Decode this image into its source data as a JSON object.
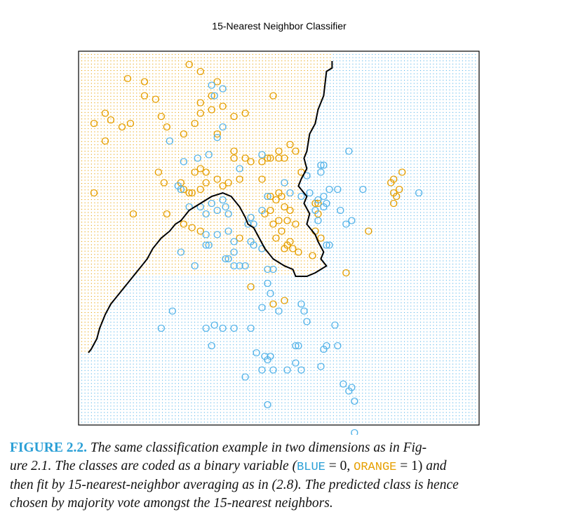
{
  "chart_data": {
    "type": "scatter",
    "title": "15-Nearest Neighbor Classifier",
    "xlabel": "",
    "ylabel": "",
    "xlim": [
      -2.6,
      4.2
    ],
    "ylim": [
      -2.2,
      2.9
    ],
    "marker": "O",
    "colors": {
      "ORANGE": "#e69f00",
      "BLUE": "#56b4e9",
      "boundary": "#000000",
      "frame": "#000000"
    },
    "background_grid": "dotted prediction grid colored by predicted class",
    "series": [
      {
        "name": "ORANGE",
        "points": [
          [
            -1.9,
            2.65
          ],
          [
            -1.6,
            2.6
          ],
          [
            -1.6,
            2.4
          ],
          [
            -1.4,
            2.35
          ],
          [
            -0.8,
            2.85
          ],
          [
            -0.6,
            2.75
          ],
          [
            -0.3,
            2.6
          ],
          [
            -0.4,
            2.4
          ],
          [
            -0.6,
            2.3
          ],
          [
            -0.4,
            2.2
          ],
          [
            -0.2,
            2.25
          ],
          [
            -0.6,
            2.15
          ],
          [
            0.0,
            2.1
          ],
          [
            0.2,
            2.15
          ],
          [
            0.7,
            2.4
          ],
          [
            -2.3,
            2.15
          ],
          [
            -2.2,
            2.05
          ],
          [
            -2.0,
            1.95
          ],
          [
            -1.85,
            2.0
          ],
          [
            -2.5,
            2.0
          ],
          [
            -2.3,
            1.75
          ],
          [
            -1.3,
            2.1
          ],
          [
            -1.2,
            1.95
          ],
          [
            -0.9,
            1.85
          ],
          [
            -0.7,
            2.0
          ],
          [
            -0.3,
            1.85
          ],
          [
            0.0,
            1.6
          ],
          [
            0.0,
            1.5
          ],
          [
            -1.35,
            1.3
          ],
          [
            -1.25,
            1.15
          ],
          [
            -0.95,
            1.15
          ],
          [
            -0.9,
            1.05
          ],
          [
            -0.8,
            1.0
          ],
          [
            -0.75,
            1.0
          ],
          [
            -0.6,
            1.05
          ],
          [
            -0.5,
            1.15
          ],
          [
            -0.7,
            1.3
          ],
          [
            -0.6,
            1.35
          ],
          [
            -0.5,
            1.3
          ],
          [
            -0.3,
            1.2
          ],
          [
            -0.2,
            1.1
          ],
          [
            -0.1,
            1.15
          ],
          [
            0.1,
            1.2
          ],
          [
            0.2,
            1.5
          ],
          [
            0.3,
            1.45
          ],
          [
            0.5,
            1.45
          ],
          [
            0.6,
            1.5
          ],
          [
            0.65,
            1.5
          ],
          [
            0.8,
            1.5
          ],
          [
            0.9,
            1.5
          ],
          [
            1.0,
            1.7
          ],
          [
            1.1,
            1.6
          ],
          [
            0.8,
            1.6
          ],
          [
            1.2,
            1.3
          ],
          [
            -2.5,
            1.0
          ],
          [
            -1.8,
            0.7
          ],
          [
            -1.2,
            0.7
          ],
          [
            0.5,
            1.2
          ],
          [
            0.65,
            0.95
          ],
          [
            0.75,
            0.9
          ],
          [
            0.8,
            1.0
          ],
          [
            0.85,
            0.95
          ],
          [
            0.65,
            0.75
          ],
          [
            0.55,
            0.7
          ],
          [
            0.9,
            0.8
          ],
          [
            0.95,
            0.6
          ],
          [
            1.0,
            0.75
          ],
          [
            1.1,
            0.55
          ],
          [
            0.8,
            0.6
          ],
          [
            0.7,
            0.55
          ],
          [
            0.85,
            0.45
          ],
          [
            -0.9,
            0.55
          ],
          [
            -0.75,
            0.5
          ],
          [
            -0.6,
            0.45
          ],
          [
            0.1,
            0.35
          ],
          [
            0.75,
            0.35
          ],
          [
            0.95,
            0.25
          ],
          [
            1.05,
            0.2
          ],
          [
            1.0,
            0.3
          ],
          [
            0.9,
            0.2
          ],
          [
            1.15,
            0.15
          ],
          [
            1.4,
            0.1
          ],
          [
            1.45,
            0.45
          ],
          [
            1.5,
            0.7
          ],
          [
            1.55,
            0.35
          ],
          [
            1.45,
            0.85
          ],
          [
            1.5,
            0.85
          ],
          [
            2.4,
            0.45
          ],
          [
            2.0,
            -0.15
          ],
          [
            2.8,
            1.15
          ],
          [
            2.85,
            1.2
          ],
          [
            2.85,
            1.0
          ],
          [
            2.9,
            0.95
          ],
          [
            2.95,
            1.05
          ],
          [
            3.0,
            1.3
          ],
          [
            2.85,
            0.85
          ],
          [
            0.3,
            -0.35
          ],
          [
            0.7,
            -0.6
          ],
          [
            0.9,
            -0.55
          ]
        ]
      },
      {
        "name": "BLUE",
        "points": [
          [
            -0.4,
            2.55
          ],
          [
            -0.2,
            2.5
          ],
          [
            -0.35,
            2.4
          ],
          [
            -0.3,
            1.8
          ],
          [
            -0.2,
            1.95
          ],
          [
            -1.15,
            1.75
          ],
          [
            -0.45,
            1.55
          ],
          [
            -0.65,
            1.5
          ],
          [
            -0.9,
            1.45
          ],
          [
            0.1,
            1.35
          ],
          [
            0.5,
            1.55
          ],
          [
            1.3,
            1.25
          ],
          [
            -1.0,
            1.1
          ],
          [
            -0.95,
            1.05
          ],
          [
            -0.8,
            0.8
          ],
          [
            -0.6,
            0.8
          ],
          [
            -0.4,
            0.85
          ],
          [
            -0.3,
            0.75
          ],
          [
            -0.2,
            0.9
          ],
          [
            -0.15,
            0.8
          ],
          [
            -0.1,
            0.7
          ],
          [
            -0.5,
            0.7
          ],
          [
            0.3,
            0.65
          ],
          [
            0.5,
            0.75
          ],
          [
            0.25,
            0.55
          ],
          [
            0.35,
            0.55
          ],
          [
            0.6,
            0.95
          ],
          [
            0.9,
            1.15
          ],
          [
            1.0,
            1.0
          ],
          [
            1.2,
            0.95
          ],
          [
            1.35,
            1.0
          ],
          [
            1.5,
            0.9
          ],
          [
            1.6,
            0.95
          ],
          [
            1.7,
            1.05
          ],
          [
            1.55,
            1.4
          ],
          [
            1.55,
            1.3
          ],
          [
            1.6,
            1.4
          ],
          [
            1.85,
            1.05
          ],
          [
            2.05,
            1.6
          ],
          [
            1.6,
            0.8
          ],
          [
            1.45,
            0.75
          ],
          [
            1.5,
            0.6
          ],
          [
            1.65,
            0.85
          ],
          [
            1.9,
            0.75
          ],
          [
            2.0,
            0.55
          ],
          [
            2.1,
            0.6
          ],
          [
            3.3,
            1.0
          ],
          [
            2.3,
            1.05
          ],
          [
            -0.5,
            0.4
          ],
          [
            -0.3,
            0.4
          ],
          [
            -0.1,
            0.45
          ],
          [
            0.0,
            0.3
          ],
          [
            -0.45,
            0.25
          ],
          [
            0.3,
            0.3
          ],
          [
            0.35,
            0.25
          ],
          [
            0.5,
            0.2
          ],
          [
            -0.1,
            0.05
          ],
          [
            0.0,
            0.15
          ],
          [
            -0.15,
            0.05
          ],
          [
            -0.95,
            0.15
          ],
          [
            -0.7,
            -0.05
          ],
          [
            -0.5,
            0.25
          ],
          [
            0.0,
            -0.05
          ],
          [
            0.1,
            -0.05
          ],
          [
            0.2,
            -0.05
          ],
          [
            0.6,
            -0.1
          ],
          [
            0.7,
            -0.1
          ],
          [
            1.7,
            0.25
          ],
          [
            1.65,
            0.25
          ],
          [
            0.6,
            -0.3
          ],
          [
            0.65,
            -0.45
          ],
          [
            0.5,
            -0.65
          ],
          [
            0.8,
            -0.7
          ],
          [
            -1.1,
            -0.7
          ],
          [
            -1.3,
            -0.95
          ],
          [
            -0.5,
            -0.95
          ],
          [
            -0.35,
            -0.9
          ],
          [
            -0.2,
            -0.95
          ],
          [
            0.0,
            -0.95
          ],
          [
            0.3,
            -0.95
          ],
          [
            1.8,
            -0.9
          ],
          [
            1.25,
            -0.7
          ],
          [
            1.2,
            -0.6
          ],
          [
            1.3,
            -0.85
          ],
          [
            1.1,
            -1.2
          ],
          [
            1.15,
            -1.2
          ],
          [
            1.6,
            -1.25
          ],
          [
            1.65,
            -1.2
          ],
          [
            1.85,
            -1.2
          ],
          [
            0.4,
            -1.3
          ],
          [
            0.55,
            -1.35
          ],
          [
            0.6,
            -1.4
          ],
          [
            0.65,
            -1.35
          ],
          [
            -0.4,
            -1.2
          ],
          [
            0.5,
            -1.55
          ],
          [
            0.7,
            -1.55
          ],
          [
            0.95,
            -1.55
          ],
          [
            1.1,
            -1.45
          ],
          [
            1.2,
            -1.55
          ],
          [
            1.55,
            -1.5
          ],
          [
            0.2,
            -1.65
          ],
          [
            1.95,
            -1.75
          ],
          [
            2.05,
            -1.85
          ],
          [
            2.1,
            -1.8
          ],
          [
            2.15,
            -2.0
          ],
          [
            0.6,
            -2.05
          ],
          [
            2.15,
            -2.45
          ]
        ]
      }
    ],
    "decision_boundary": [
      [
        1.75,
        2.9
      ],
      [
        1.75,
        2.8
      ],
      [
        1.65,
        2.75
      ],
      [
        1.6,
        2.4
      ],
      [
        1.5,
        2.2
      ],
      [
        1.45,
        2.0
      ],
      [
        1.35,
        1.85
      ],
      [
        1.3,
        1.6
      ],
      [
        1.25,
        1.5
      ],
      [
        1.3,
        1.35
      ],
      [
        1.2,
        1.2
      ],
      [
        1.15,
        1.1
      ],
      [
        1.3,
        0.95
      ],
      [
        1.25,
        0.85
      ],
      [
        1.35,
        0.7
      ],
      [
        1.3,
        0.55
      ],
      [
        1.45,
        0.4
      ],
      [
        1.5,
        0.3
      ],
      [
        1.6,
        0.15
      ],
      [
        1.55,
        0.05
      ],
      [
        1.65,
        -0.05
      ],
      [
        1.45,
        -0.15
      ],
      [
        1.3,
        -0.2
      ],
      [
        1.1,
        -0.2
      ],
      [
        1.05,
        -0.1
      ],
      [
        0.9,
        -0.05
      ],
      [
        0.7,
        0.05
      ],
      [
        0.55,
        0.2
      ],
      [
        0.45,
        0.35
      ],
      [
        0.35,
        0.5
      ],
      [
        0.25,
        0.55
      ],
      [
        0.2,
        0.65
      ],
      [
        0.1,
        0.8
      ],
      [
        -0.05,
        0.95
      ],
      [
        -0.2,
        1.0
      ],
      [
        -0.4,
        0.95
      ],
      [
        -0.6,
        0.85
      ],
      [
        -0.8,
        0.75
      ],
      [
        -0.95,
        0.6
      ],
      [
        -1.05,
        0.55
      ],
      [
        -1.15,
        0.45
      ],
      [
        -1.3,
        0.35
      ],
      [
        -1.45,
        0.2
      ],
      [
        -1.55,
        0.05
      ],
      [
        -1.65,
        -0.05
      ],
      [
        -1.75,
        -0.15
      ],
      [
        -1.9,
        -0.3
      ],
      [
        -2.05,
        -0.45
      ],
      [
        -2.2,
        -0.6
      ],
      [
        -2.3,
        -0.75
      ],
      [
        -2.4,
        -0.95
      ],
      [
        -2.45,
        -1.1
      ],
      [
        -2.55,
        -1.25
      ],
      [
        -2.6,
        -1.3
      ]
    ]
  },
  "caption": {
    "label": "FIGURE 2.2.",
    "line1": "The same classification example in two dimensions as in Fig-",
    "line2a": "ure 2.1. The classes are coded as a binary variable (",
    "blue": "BLUE",
    "eq1": " = 0, ",
    "orange": "ORANGE",
    "eq2": " = 1)",
    "line2b": " and",
    "line3": "then fit by 15-nearest-neighbor averaging as in (2.8). The predicted class is hence",
    "line4": "chosen by majority vote amongst the 15-nearest neighbors."
  }
}
